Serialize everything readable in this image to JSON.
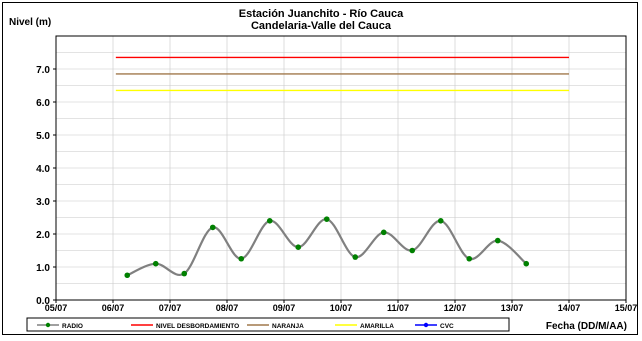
{
  "chart_data": {
    "type": "line",
    "title": "Estación Juanchito - Río Cauca",
    "subtitle": "Candelaria-Valle del Cauca",
    "ylabel": "Nivel (m)",
    "xlabel": "Fecha (DD/M/AA)",
    "ylim": [
      0.0,
      8.0
    ],
    "xlim": [
      0,
      10
    ],
    "y_ticks": [
      0.0,
      1.0,
      2.0,
      3.0,
      4.0,
      5.0,
      6.0,
      7.0
    ],
    "y_tick_labels": [
      "0.0",
      "1.0",
      "2.0",
      "3.0",
      "4.0",
      "5.0",
      "6.0",
      "7.0"
    ],
    "x_tick_labels": [
      "05/07",
      "06/07",
      "07/07",
      "08/07",
      "09/07",
      "10/07",
      "11/07",
      "12/07",
      "13/07",
      "14/07",
      "15/07"
    ],
    "grid": true,
    "legend_position": "bottom",
    "series": [
      {
        "name": "RADIO",
        "color": "#808080",
        "marker_color": "#008000",
        "x": [
          1.25,
          1.75,
          2.25,
          2.75,
          3.25,
          3.75,
          4.25,
          4.75,
          5.25,
          5.75,
          6.25,
          6.75,
          7.25,
          7.75,
          8.25
        ],
        "y": [
          0.75,
          1.1,
          0.8,
          2.2,
          1.25,
          2.4,
          1.6,
          2.45,
          1.3,
          2.05,
          1.5,
          2.4,
          1.25,
          1.8,
          1.1
        ]
      },
      {
        "name": "NIVEL DESBORDAMIENTO",
        "color": "#ff0000",
        "x": [
          1.05,
          9.0
        ],
        "y": [
          7.35,
          7.35
        ]
      },
      {
        "name": "NARANJA",
        "color": "#a0784b",
        "x": [
          1.05,
          9.0
        ],
        "y": [
          6.85,
          6.85
        ]
      },
      {
        "name": "AMARILLA",
        "color": "#ffff00",
        "x": [
          1.05,
          9.0
        ],
        "y": [
          6.35,
          6.35
        ]
      },
      {
        "name": "CVC",
        "color": "#0000ff",
        "x": [],
        "y": []
      }
    ]
  }
}
